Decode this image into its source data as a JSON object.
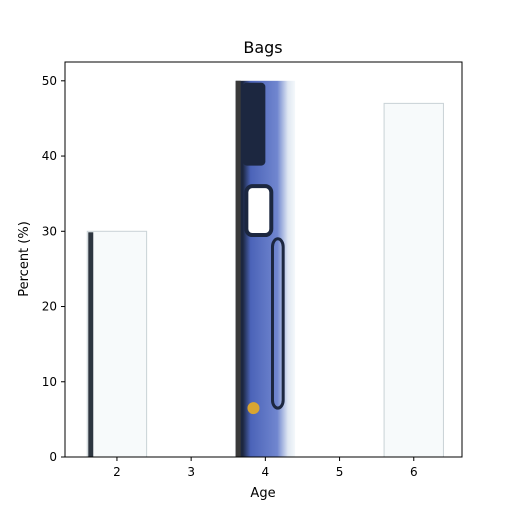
{
  "chart_data": {
    "type": "bar",
    "title": "Bags",
    "xlabel": "Age",
    "ylabel": "Percent (%)",
    "x_ticks": [
      2,
      3,
      4,
      5,
      6
    ],
    "y_ticks": [
      0,
      10,
      20,
      30,
      40,
      50
    ],
    "xlim": [
      1.3,
      6.65
    ],
    "ylim": [
      0,
      52.5
    ],
    "grid": false,
    "bar_width": 0.8,
    "bars": [
      {
        "x": 2,
        "value": 30,
        "style": "plain-white-bag"
      },
      {
        "x": 4,
        "value": 50,
        "style": "blue-patterned-bag"
      },
      {
        "x": 6,
        "value": 47,
        "style": "plain-white-bag"
      }
    ],
    "colors": {
      "plain_bag_fill": "#f7fafb",
      "plain_bag_edge": "#c9d2d6",
      "plain_bag_shadow": "#2d3640",
      "patterned_bag_fill": "#4b63b8",
      "patterned_bag_dark": "#1c2740",
      "patterned_bag_accent": "#d9a531"
    }
  }
}
